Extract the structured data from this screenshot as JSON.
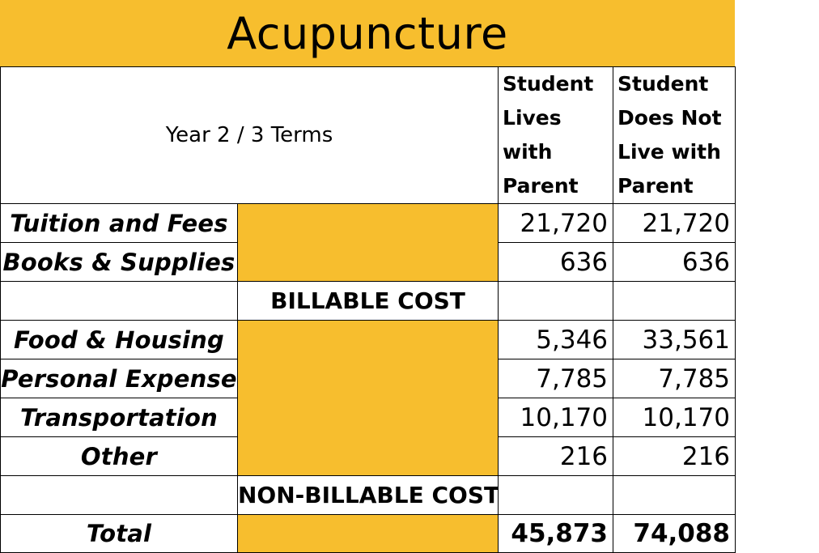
{
  "colors": {
    "accent": "#F7BE2E",
    "border": "#000000"
  },
  "title": "Acupuncture",
  "header": {
    "period": "Year 2 / 3 Terms",
    "columns": [
      [
        "Student",
        "Lives with",
        "Parent"
      ],
      [
        "Student",
        "Does Not",
        "Live with",
        "Parent"
      ]
    ]
  },
  "rows": {
    "tuition": {
      "label": "Tuition and Fees",
      "with_parent": "21,720",
      "without_parent": "21,720"
    },
    "books": {
      "label": "Books & Supplies",
      "with_parent": "636",
      "without_parent": "636"
    },
    "billable": {
      "label": "BILLABLE COST"
    },
    "food": {
      "label": "Food & Housing",
      "with_parent": "5,346",
      "without_parent": "33,561"
    },
    "personal": {
      "label": "Personal Expense",
      "with_parent": "7,785",
      "without_parent": "7,785"
    },
    "transport": {
      "label": "Transportation",
      "with_parent": "10,170",
      "without_parent": "10,170"
    },
    "other": {
      "label": "Other",
      "with_parent": "216",
      "without_parent": "216"
    },
    "nonbillable": {
      "label": "NON-BILLABLE COST"
    },
    "total": {
      "label": "Total",
      "with_parent": "45,873",
      "without_parent": "74,088"
    }
  }
}
